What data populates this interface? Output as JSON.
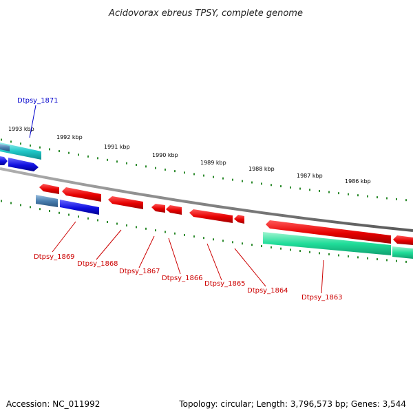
{
  "title": "Acidovorax ebreus TPSY, complete genome",
  "accession_text": "Accession: NC_011992",
  "topology_text": "Topology: circular; Length: 3,796,573 bp; Genes: 3,544",
  "colors": {
    "backbone": "#8a8a8a",
    "minor_tick": "#2e8b2e",
    "major_tick": "#1f7a1f",
    "forward_label": "#0000cc",
    "reverse_label": "#cc0000",
    "cds_reverse": "#e60000",
    "cds_forward": "#1010e0",
    "rna_cyan": "#20c8c8",
    "misc_steel": "#4a7fb0",
    "rna_green": "#20dd99"
  },
  "scale_labels": [
    "1993 kbp",
    "1992 kbp",
    "1991 kbp",
    "1990 kbp",
    "1989 kbp",
    "1988 kbp",
    "1987 kbp",
    "1986 kbp"
  ],
  "gene_labels": [
    {
      "text": "Dtpsy_1871",
      "strand": "forward"
    },
    {
      "text": "Dtpsy_1869",
      "strand": "reverse"
    },
    {
      "text": "Dtpsy_1868",
      "strand": "reverse"
    },
    {
      "text": "Dtpsy_1867",
      "strand": "reverse"
    },
    {
      "text": "Dtpsy_1866",
      "strand": "reverse"
    },
    {
      "text": "Dtpsy_1865",
      "strand": "reverse"
    },
    {
      "text": "Dtpsy_1864",
      "strand": "reverse"
    },
    {
      "text": "Dtpsy_1863",
      "strand": "reverse"
    }
  ]
}
